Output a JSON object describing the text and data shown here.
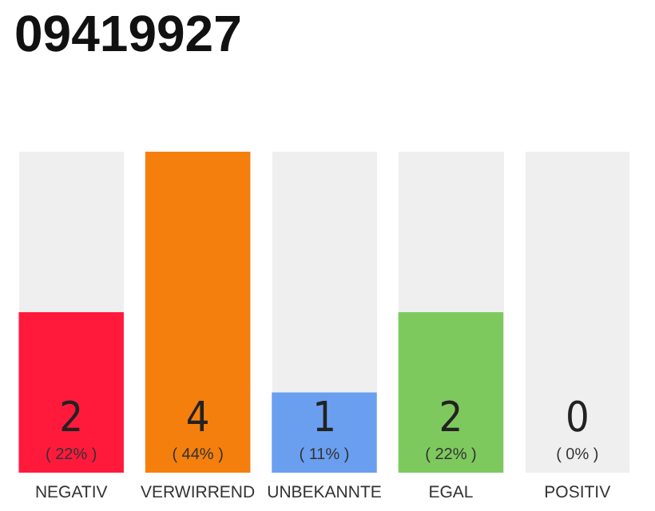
{
  "chart_data": {
    "type": "bar",
    "title": "09419927",
    "categories": [
      "NEGATIV",
      "VERWIRREND",
      "UNBEKANNTE",
      "EGAL",
      "POSITIV"
    ],
    "values": [
      2,
      4,
      1,
      2,
      0
    ],
    "colors": [
      "#ff1a3c",
      "#f57f0d",
      "#6a9ff0",
      "#7ec95e",
      "#dddddd"
    ],
    "value_labels": [
      "2\n( 22% )",
      "4\n( 44% )",
      "1\n( 11% )",
      "2\n( 22% )",
      "0\n( 0% )"
    ]
  }
}
